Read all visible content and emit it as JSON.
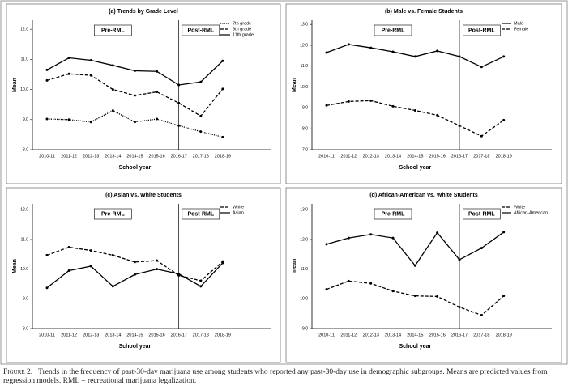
{
  "chart_data": [
    {
      "type": "line",
      "title": "(a) Trends by Grade Level",
      "y_label": "Mean",
      "x_label": "School year",
      "categories": [
        "2010-11",
        "2011-12",
        "2012-13",
        "2013-14",
        "2014-15",
        "2015-16",
        "2016-17",
        "2017-18",
        "2018-19"
      ],
      "ylim": [
        8,
        12.3
      ],
      "yticks": [
        {
          "value": 8,
          "label": "8.0"
        },
        {
          "value": 9,
          "label": "9.0"
        },
        {
          "value": 10,
          "label": "10.0"
        },
        {
          "value": 11,
          "label": "11.0"
        },
        {
          "value": 12,
          "label": "12.0"
        }
      ],
      "period_labels": [
        "Pre-RML",
        "Post-RML"
      ],
      "legend": "upper right",
      "series": [
        {
          "name": "7th grade",
          "color": "#000000",
          "line_style": "dotted",
          "values": [
            9.02,
            9.0,
            8.92,
            9.3,
            8.92,
            9.02,
            8.8,
            8.6,
            8.42
          ]
        },
        {
          "name": "9th grade",
          "color": "#000000",
          "line_style": "dashed",
          "values": [
            10.3,
            10.52,
            10.47,
            10.0,
            9.8,
            9.92,
            9.55,
            9.12,
            10.02
          ]
        },
        {
          "name": "11th grade",
          "color": "#000000",
          "line_style": "solid",
          "values": [
            10.65,
            11.05,
            10.97,
            10.8,
            10.62,
            10.6,
            10.15,
            10.25,
            10.95
          ]
        }
      ]
    },
    {
      "type": "line",
      "title": "(b) Male vs. Female Students",
      "y_label": "Mean",
      "x_label": "School year",
      "categories": [
        "2010-11",
        "2011-12",
        "2012-13",
        "2013-14",
        "2014-15",
        "2015-16",
        "2016-17",
        "2017-18",
        "2018-19"
      ],
      "ylim": [
        7,
        13.2
      ],
      "yticks": [
        {
          "value": 7,
          "label": "7.0"
        },
        {
          "value": 8,
          "label": "8.0"
        },
        {
          "value": 9,
          "label": "9.0"
        },
        {
          "value": 10,
          "label": "10.0"
        },
        {
          "value": 11,
          "label": "11.0"
        },
        {
          "value": 12,
          "label": "12.0"
        },
        {
          "value": 13,
          "label": "13.0"
        }
      ],
      "period_labels": [
        "Pre-RML",
        "Post-RML"
      ],
      "legend": "upper right",
      "series": [
        {
          "name": "Male",
          "color": "#000000",
          "line_style": "solid",
          "values": [
            11.65,
            12.04,
            11.88,
            11.69,
            11.46,
            11.73,
            11.46,
            10.96,
            11.46
          ]
        },
        {
          "name": "Female",
          "color": "#000000",
          "line_style": "dashed",
          "values": [
            9.12,
            9.31,
            9.35,
            9.08,
            8.88,
            8.65,
            8.15,
            7.65,
            8.42
          ]
        }
      ]
    },
    {
      "type": "line",
      "title": "(c) Asian vs. White Students",
      "y_label": "Mean",
      "x_label": "School year",
      "categories": [
        "2010-11",
        "2011-12",
        "2012-13",
        "2013-14",
        "2014-15",
        "2015-16",
        "2016-17",
        "2017-18",
        "2018-19"
      ],
      "ylim": [
        8,
        12.2
      ],
      "yticks": [
        {
          "value": 8,
          "label": "8.0"
        },
        {
          "value": 9,
          "label": "9.0"
        },
        {
          "value": 10,
          "label": "10.0"
        },
        {
          "value": 11,
          "label": "11.0"
        },
        {
          "value": 12,
          "label": "12.0"
        }
      ],
      "period_labels": [
        "Pre-RML",
        "Post-RML"
      ],
      "legend": "upper right",
      "series": [
        {
          "name": "White",
          "color": "#000000",
          "line_style": "dashed",
          "values": [
            10.47,
            10.74,
            10.63,
            10.47,
            10.24,
            10.29,
            9.79,
            9.61,
            10.26
          ]
        },
        {
          "name": "Asian",
          "color": "#000000",
          "line_style": "solid",
          "values": [
            9.37,
            9.95,
            10.1,
            9.42,
            9.82,
            10.0,
            9.84,
            9.42,
            10.21
          ]
        }
      ]
    },
    {
      "type": "line",
      "title": "(d) African-American vs. White Students",
      "y_label": "mean",
      "x_label": "School year",
      "categories": [
        "2010-11",
        "2011-12",
        "2012-13",
        "2013-14",
        "2014-15",
        "2015-16",
        "2016-17",
        "2017-18",
        "2018-19"
      ],
      "ylim": [
        9,
        13.2
      ],
      "yticks": [
        {
          "value": 9,
          "label": "9.0"
        },
        {
          "value": 10,
          "label": "10.0"
        },
        {
          "value": 11,
          "label": "11.0"
        },
        {
          "value": 12,
          "label": "12.0"
        },
        {
          "value": 13,
          "label": "13.0"
        }
      ],
      "period_labels": [
        "Pre-RML",
        "Post-RML"
      ],
      "legend": "upper right",
      "series": [
        {
          "name": "White",
          "color": "#000000",
          "line_style": "dashed",
          "values": [
            10.32,
            10.6,
            10.52,
            10.26,
            10.1,
            10.08,
            9.72,
            9.45,
            10.1
          ]
        },
        {
          "name": "African-American",
          "color": "#000000",
          "line_style": "solid",
          "values": [
            11.84,
            12.05,
            12.17,
            12.05,
            11.12,
            12.23,
            11.32,
            11.71,
            12.25
          ]
        }
      ]
    }
  ],
  "caption_label": "Figure 2.",
  "caption": "Trends in the frequency of past-30-day marijuana use among students who reported any past-30-day use in demographic subgroups. Means are predicted values from regression models. RML = recreational marijuana legalization."
}
